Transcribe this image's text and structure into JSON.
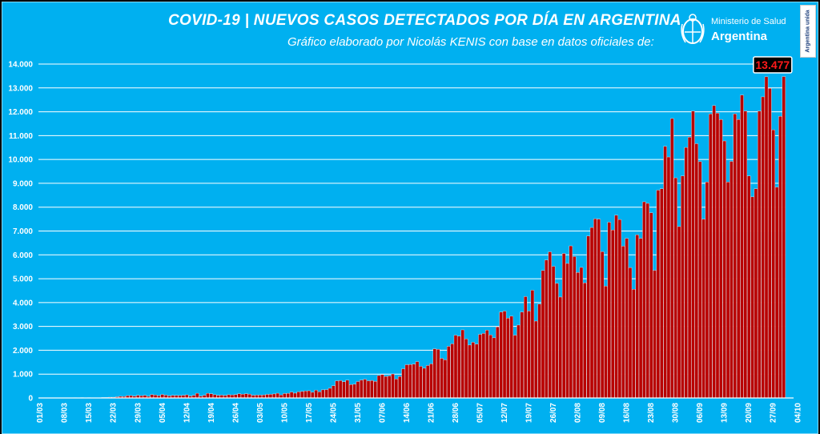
{
  "header": {
    "title": "COVID-19  |  NUEVOS CASOS DETECTADOS POR DÍA EN ARGENTINA",
    "subtitle": "Gráfico elaborado por Nicolás KENIS con base en datos oficiales de:"
  },
  "logo": {
    "line1": "Ministerio de Salud",
    "line2": "Argentina",
    "icon": "coat-of-arms-icon"
  },
  "badge": {
    "text": "Argentina unida"
  },
  "colors": {
    "background": "#00b0f0",
    "bar_fill": "#b80000",
    "bar_stroke": "#ffffff",
    "gridline": "#ffffff",
    "callout_bg": "#000000",
    "callout_text": "#ff1a1a"
  },
  "chart_data": {
    "type": "bar",
    "title": "COVID-19  |  NUEVOS CASOS DETECTADOS POR DÍA EN ARGENTINA",
    "xlabel": "",
    "ylabel": "",
    "start_date": "01/03",
    "grid": true,
    "ylim": [
      0,
      14000
    ],
    "y_ticks": [
      "0",
      "1.000",
      "2.000",
      "3.000",
      "4.000",
      "5.000",
      "6.000",
      "7.000",
      "8.000",
      "9.000",
      "10.000",
      "11.000",
      "12.000",
      "13.000",
      "14.000"
    ],
    "x_ticks": [
      "01/03",
      "08/03",
      "15/03",
      "22/03",
      "29/03",
      "05/04",
      "12/04",
      "19/04",
      "26/04",
      "03/05",
      "10/05",
      "17/05",
      "24/05",
      "31/05",
      "07/06",
      "14/06",
      "21/06",
      "28/06",
      "05/07",
      "12/07",
      "19/07",
      "26/07",
      "02/08",
      "09/08",
      "16/08",
      "23/08",
      "30/08",
      "06/09",
      "13/09",
      "20/09",
      "27/09",
      "04/10"
    ],
    "annotation": {
      "label": "13.477",
      "value": 13477
    },
    "values": [
      0,
      0,
      1,
      5,
      2,
      5,
      1,
      3,
      1,
      4,
      12,
      9,
      14,
      11,
      13,
      5,
      2,
      4,
      18,
      19,
      31,
      31,
      48,
      67,
      63,
      97,
      100,
      74,
      110,
      96,
      112,
      67,
      140,
      124,
      93,
      148,
      119,
      86,
      106,
      106,
      102,
      112,
      133,
      81,
      108,
      198,
      78,
      112,
      197,
      174,
      137,
      107,
      118,
      105,
      136,
      130,
      140,
      176,
      158,
      178,
      162,
      113,
      120,
      120,
      128,
      150,
      154,
      169,
      199,
      129,
      186,
      196,
      249,
      202,
      256,
      273,
      294,
      301,
      238,
      331,
      260,
      339,
      350,
      406,
      513,
      718,
      730,
      678,
      747,
      560,
      575,
      689,
      750,
      786,
      720,
      731,
      694,
      941,
      982,
      904,
      924,
      1005,
      794,
      899,
      1223,
      1393,
      1404,
      1418,
      1526,
      1328,
      1246,
      1361,
      1430,
      2060,
      2040,
      1662,
      1599,
      2165,
      2269,
      2634,
      2590,
      2854,
      2477,
      2219,
      2335,
      2256,
      2667,
      2706,
      2845,
      2642,
      2522,
      2979,
      3599,
      3642,
      3346,
      3428,
      2632,
      3057,
      3604,
      4250,
      3645,
      4518,
      3223,
      3937,
      5344,
      5782,
      6127,
      5521,
      4805,
      4231,
      6059,
      5641,
      6377,
      5929,
      5262,
      5473,
      4824,
      6792,
      7147,
      7513,
      7498,
      6134,
      4688,
      7369,
      7043,
      7663,
      7482,
      6365,
      6693,
      5465,
      4557,
      6840,
      6693,
      8225,
      8159,
      7767,
      5352,
      8713,
      8771,
      10550,
      10104,
      11717,
      9230,
      7187,
      9309,
      10504,
      10933,
      12026,
      10661,
      9908,
      7498,
      9056,
      11905,
      12259,
      11945,
      11674,
      10776,
      9056,
      9920,
      11910,
      11674,
      12701,
      12026,
      9309,
      8431,
      8771,
      12027,
      12625,
      13467,
      12982,
      11242,
      8841,
      11807,
      13477
    ]
  }
}
